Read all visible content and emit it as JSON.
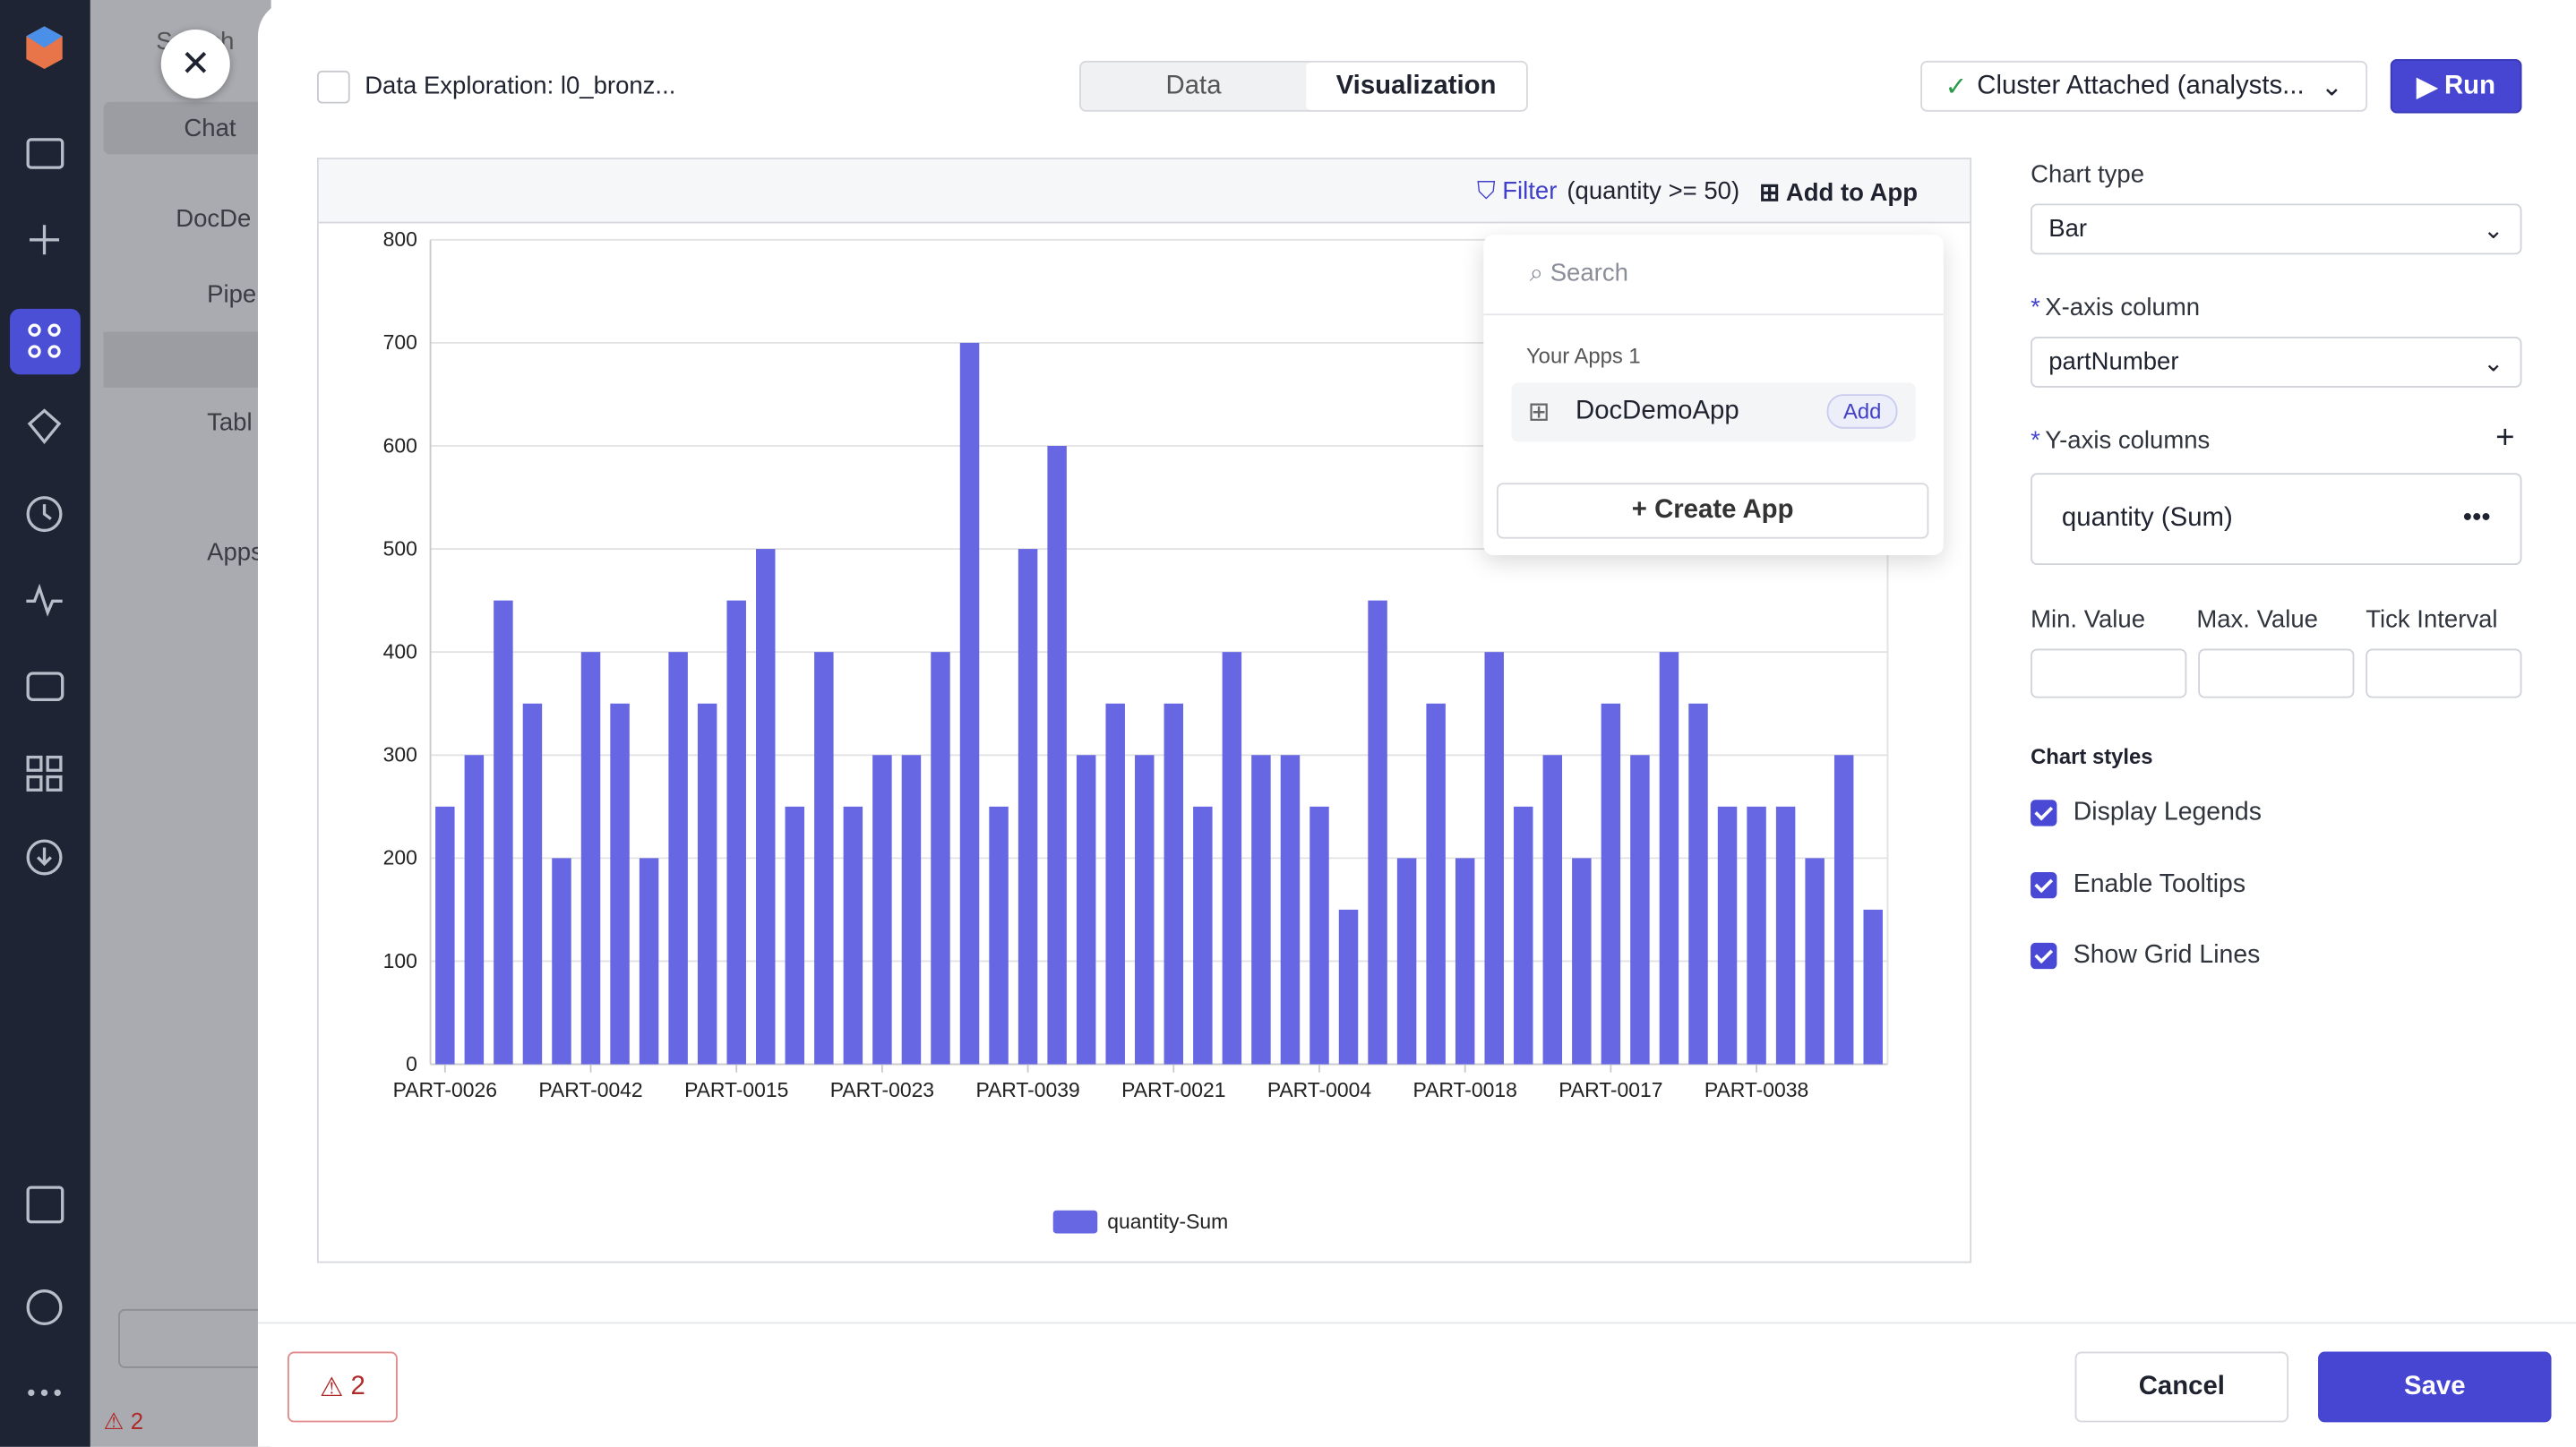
{
  "sidebar": {
    "search": "Search",
    "chat": "Chat",
    "project": "DocDe",
    "items": [
      "Pipe",
      "Tabl",
      "Apps"
    ],
    "alert_count": 2
  },
  "header": {
    "title": "Data Exploration: l0_bronz...",
    "tabs": [
      "Data",
      "Visualization"
    ],
    "cluster": "Cluster Attached (analysts...",
    "run": "Run"
  },
  "toolbar": {
    "filter": "Filter",
    "filter_expr": "(quantity >= 50)",
    "add_to_app": "Add to App"
  },
  "app_menu": {
    "search": "Search",
    "section": "Your Apps 1",
    "app": "DocDemoApp",
    "add": "Add",
    "create": "Create App"
  },
  "settings": {
    "chart_type_label": "Chart type",
    "chart_type": "Bar",
    "x_label": "X-axis column",
    "x_value": "partNumber",
    "y_label": "Y-axis columns",
    "y_value": "quantity (Sum)",
    "min": "Min. Value",
    "max": "Max. Value",
    "tick": "Tick Interval",
    "styles": "Chart styles",
    "options": [
      "Display Legends",
      "Enable Tooltips",
      "Show Grid Lines"
    ]
  },
  "footer": {
    "alerts": 2,
    "cancel": "Cancel",
    "save": "Save"
  },
  "chart_data": {
    "type": "bar",
    "color": "#6767e4",
    "grid": true,
    "legend": "bottom",
    "categories": [
      "PART-0026",
      null,
      null,
      null,
      null,
      "PART-0042",
      null,
      null,
      null,
      null,
      "PART-0015",
      null,
      null,
      null,
      null,
      "PART-0023",
      null,
      null,
      null,
      null,
      "PART-0039",
      null,
      null,
      null,
      null,
      "PART-0021",
      null,
      null,
      null,
      null,
      "PART-0004",
      null,
      null,
      null,
      null,
      "PART-0018",
      null,
      null,
      null,
      null,
      "PART-0017",
      null,
      null,
      null,
      null,
      "PART-0038",
      null,
      null,
      null,
      null
    ],
    "series": [
      {
        "name": "quantity-Sum",
        "color": "#6767e4",
        "values": [
          250,
          300,
          450,
          350,
          200,
          400,
          350,
          200,
          400,
          350,
          450,
          500,
          250,
          400,
          250,
          300,
          300,
          400,
          700,
          250,
          500,
          600,
          300,
          350,
          300,
          350,
          250,
          400,
          300,
          300,
          250,
          150,
          450,
          200,
          350,
          200,
          400,
          250,
          300,
          200,
          350,
          300,
          400,
          350,
          250,
          250,
          250,
          200,
          300,
          150
        ]
      }
    ],
    "ylim": [
      0,
      800
    ],
    "yticks": [
      0,
      100,
      200,
      300,
      400,
      500,
      600,
      700,
      800
    ]
  }
}
